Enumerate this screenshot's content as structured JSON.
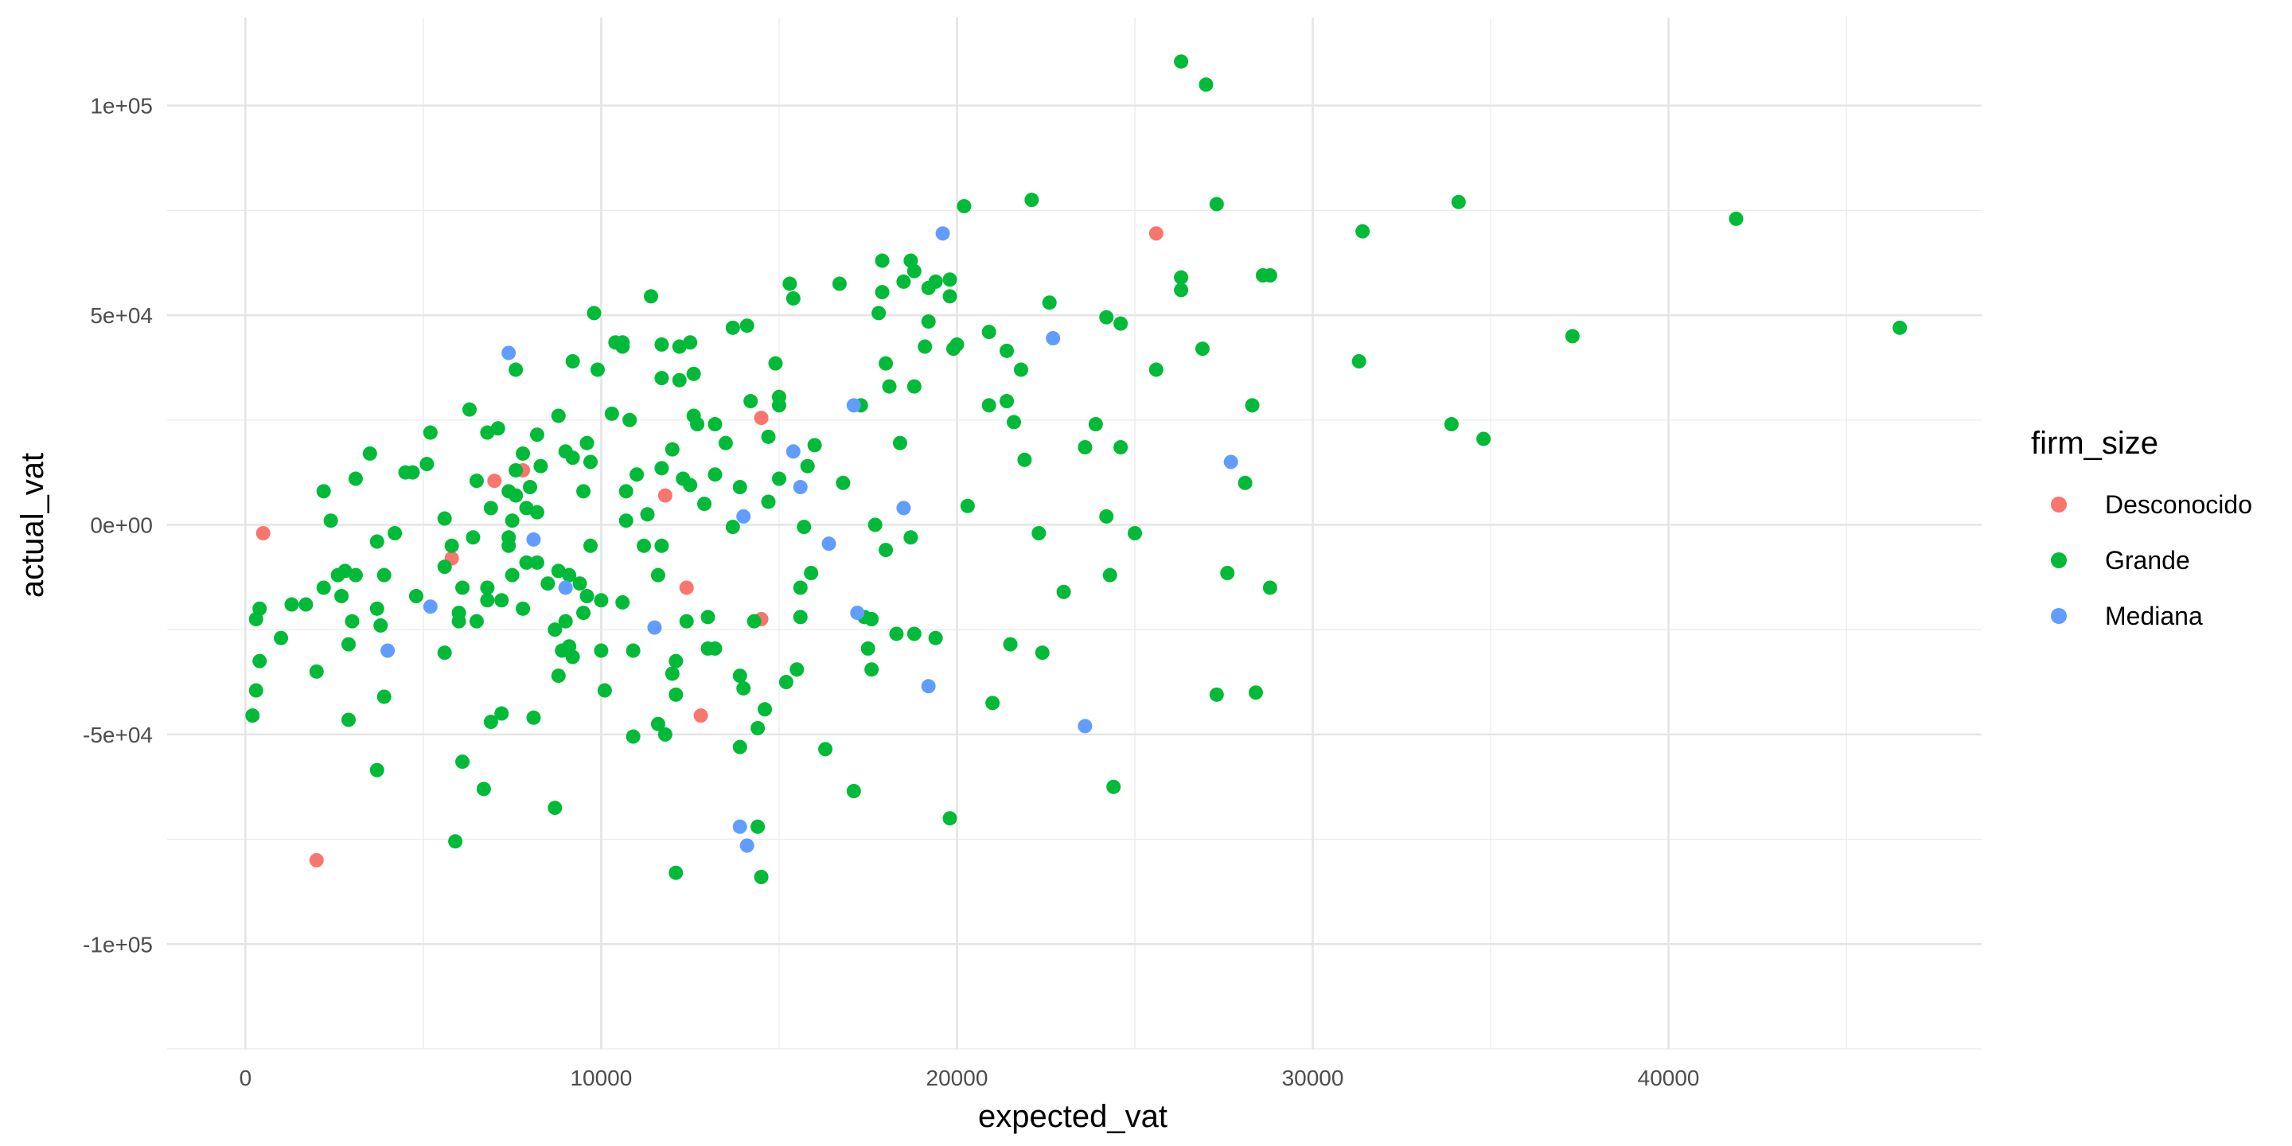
{
  "chart_data": {
    "type": "scatter",
    "xlabel": "expected_vat",
    "ylabel": "actual_vat",
    "xlim": [
      -2200,
      48800
    ],
    "ylim": [
      -125000,
      121000
    ],
    "xticks": [
      0,
      10000,
      20000,
      30000,
      40000
    ],
    "xtick_labels": [
      "0",
      "10000",
      "20000",
      "30000",
      "40000"
    ],
    "yticks": [
      -100000,
      -50000,
      0,
      50000,
      100000
    ],
    "ytick_labels": [
      "-1e+05",
      "-5e+04",
      "0e+00",
      "5e+04",
      "1e+05"
    ],
    "grid": true,
    "legend": {
      "title": "firm_size",
      "placement": "right"
    },
    "series": [
      {
        "name": "Desconocido",
        "color": "#F8766D",
        "points": [
          [
            500,
            -2000
          ],
          [
            2000,
            -80000
          ],
          [
            5800,
            -8000
          ],
          [
            7000,
            10500
          ],
          [
            7800,
            13000
          ],
          [
            11800,
            7000
          ],
          [
            12400,
            -15000
          ],
          [
            12800,
            -45500
          ],
          [
            14500,
            25500
          ],
          [
            14500,
            -22500
          ],
          [
            25600,
            69500
          ]
        ]
      },
      {
        "name": "Grande",
        "color": "#00BA38",
        "points": [
          [
            200,
            -45500
          ],
          [
            300,
            -22500
          ],
          [
            300,
            -39500
          ],
          [
            400,
            -20000
          ],
          [
            400,
            -32500
          ],
          [
            1000,
            -27000
          ],
          [
            1300,
            -19000
          ],
          [
            1700,
            -19000
          ],
          [
            2000,
            -35000
          ],
          [
            2200,
            8000
          ],
          [
            2200,
            -15000
          ],
          [
            2400,
            1000
          ],
          [
            2600,
            -12000
          ],
          [
            2700,
            -17000
          ],
          [
            2800,
            -11000
          ],
          [
            2900,
            -28500
          ],
          [
            2900,
            -46500
          ],
          [
            3000,
            -23000
          ],
          [
            3100,
            11000
          ],
          [
            3100,
            -12000
          ],
          [
            3500,
            17000
          ],
          [
            3700,
            -4000
          ],
          [
            3700,
            -20000
          ],
          [
            3700,
            -58500
          ],
          [
            3800,
            -24000
          ],
          [
            3900,
            -41000
          ],
          [
            3900,
            -12000
          ],
          [
            4200,
            -2000
          ],
          [
            4500,
            12500
          ],
          [
            4700,
            12500
          ],
          [
            4800,
            -17000
          ],
          [
            5100,
            14500
          ],
          [
            5200,
            22000
          ],
          [
            5600,
            -30500
          ],
          [
            5600,
            -10000
          ],
          [
            5600,
            1500
          ],
          [
            5800,
            -5000
          ],
          [
            5900,
            -75500
          ],
          [
            6000,
            -23000
          ],
          [
            6000,
            -21000
          ],
          [
            6100,
            -15000
          ],
          [
            6100,
            -56500
          ],
          [
            6300,
            27500
          ],
          [
            6400,
            -3000
          ],
          [
            6500,
            10500
          ],
          [
            6500,
            -23000
          ],
          [
            6700,
            -63000
          ],
          [
            6800,
            22000
          ],
          [
            6800,
            -15000
          ],
          [
            6800,
            -18000
          ],
          [
            6900,
            4000
          ],
          [
            6900,
            -47000
          ],
          [
            7100,
            23000
          ],
          [
            7200,
            -45000
          ],
          [
            7200,
            -18000
          ],
          [
            7400,
            8000
          ],
          [
            7400,
            -3000
          ],
          [
            7400,
            -5000
          ],
          [
            7500,
            1000
          ],
          [
            7500,
            -12000
          ],
          [
            7600,
            37000
          ],
          [
            7600,
            7000
          ],
          [
            7600,
            13000
          ],
          [
            7800,
            17000
          ],
          [
            7800,
            -20000
          ],
          [
            7900,
            -9000
          ],
          [
            7900,
            4000
          ],
          [
            8000,
            9000
          ],
          [
            8100,
            -46000
          ],
          [
            8200,
            21500
          ],
          [
            8200,
            3000
          ],
          [
            8200,
            -9000
          ],
          [
            8300,
            14000
          ],
          [
            8500,
            -14000
          ],
          [
            8700,
            -25000
          ],
          [
            8700,
            -67500
          ],
          [
            8800,
            26000
          ],
          [
            8800,
            -11000
          ],
          [
            8800,
            -36000
          ],
          [
            8900,
            -30000
          ],
          [
            9000,
            17500
          ],
          [
            9000,
            -23000
          ],
          [
            9100,
            -12000
          ],
          [
            9100,
            -29000
          ],
          [
            9200,
            39000
          ],
          [
            9200,
            16000
          ],
          [
            9200,
            -31500
          ],
          [
            9400,
            -14000
          ],
          [
            9500,
            8000
          ],
          [
            9500,
            -21000
          ],
          [
            9600,
            -17000
          ],
          [
            9600,
            19500
          ],
          [
            9700,
            -5000
          ],
          [
            9700,
            15000
          ],
          [
            9800,
            50500
          ],
          [
            9900,
            37000
          ],
          [
            10000,
            -18000
          ],
          [
            10000,
            -30000
          ],
          [
            10100,
            -39500
          ],
          [
            10300,
            26500
          ],
          [
            10400,
            43500
          ],
          [
            10600,
            43500
          ],
          [
            10600,
            42500
          ],
          [
            10600,
            -18500
          ],
          [
            10700,
            1000
          ],
          [
            10700,
            8000
          ],
          [
            10800,
            25000
          ],
          [
            10900,
            -50500
          ],
          [
            10900,
            -30000
          ],
          [
            11000,
            12000
          ],
          [
            11200,
            -5000
          ],
          [
            11300,
            2500
          ],
          [
            11400,
            54500
          ],
          [
            11600,
            -12000
          ],
          [
            11600,
            -47500
          ],
          [
            11700,
            35000
          ],
          [
            11700,
            43000
          ],
          [
            11700,
            13500
          ],
          [
            11700,
            -5000
          ],
          [
            11800,
            -50000
          ],
          [
            12000,
            18000
          ],
          [
            12000,
            -35500
          ],
          [
            12100,
            -40500
          ],
          [
            12100,
            -83000
          ],
          [
            12100,
            -32500
          ],
          [
            12200,
            42500
          ],
          [
            12200,
            34500
          ],
          [
            12300,
            11000
          ],
          [
            12400,
            -23000
          ],
          [
            12500,
            43500
          ],
          [
            12500,
            9500
          ],
          [
            12600,
            26000
          ],
          [
            12600,
            36000
          ],
          [
            12700,
            24000
          ],
          [
            12900,
            5000
          ],
          [
            13000,
            -29500
          ],
          [
            13000,
            -22000
          ],
          [
            13200,
            -29500
          ],
          [
            13200,
            12000
          ],
          [
            13200,
            24000
          ],
          [
            13500,
            19500
          ],
          [
            13700,
            -500
          ],
          [
            13700,
            47000
          ],
          [
            13900,
            -53000
          ],
          [
            13900,
            9000
          ],
          [
            13900,
            -36000
          ],
          [
            14000,
            -39000
          ],
          [
            14100,
            47500
          ],
          [
            14200,
            29500
          ],
          [
            14300,
            -23000
          ],
          [
            14400,
            -48500
          ],
          [
            14400,
            -72000
          ],
          [
            14500,
            -84000
          ],
          [
            14600,
            -44000
          ],
          [
            14700,
            5500
          ],
          [
            14700,
            21000
          ],
          [
            14900,
            38500
          ],
          [
            15000,
            11000
          ],
          [
            15000,
            30500
          ],
          [
            15000,
            28500
          ],
          [
            15200,
            -37500
          ],
          [
            15300,
            57500
          ],
          [
            15400,
            54000
          ],
          [
            15500,
            -34500
          ],
          [
            15600,
            -15000
          ],
          [
            15600,
            -22000
          ],
          [
            15700,
            -500
          ],
          [
            15800,
            14000
          ],
          [
            15900,
            -11500
          ],
          [
            16000,
            19000
          ],
          [
            16300,
            -53500
          ],
          [
            16700,
            57500
          ],
          [
            16800,
            10000
          ],
          [
            17100,
            -63500
          ],
          [
            17300,
            28500
          ],
          [
            17400,
            -22000
          ],
          [
            17500,
            -29500
          ],
          [
            17600,
            -34500
          ],
          [
            17600,
            -22500
          ],
          [
            17700,
            0
          ],
          [
            17800,
            50500
          ],
          [
            17900,
            63000
          ],
          [
            17900,
            55500
          ],
          [
            18000,
            38500
          ],
          [
            18000,
            -6000
          ],
          [
            18100,
            33000
          ],
          [
            18300,
            -26000
          ],
          [
            18400,
            19500
          ],
          [
            18500,
            58000
          ],
          [
            18700,
            63000
          ],
          [
            18700,
            -3000
          ],
          [
            18800,
            33000
          ],
          [
            18800,
            60500
          ],
          [
            18800,
            -26000
          ],
          [
            19100,
            42500
          ],
          [
            19200,
            48500
          ],
          [
            19200,
            56500
          ],
          [
            19400,
            58000
          ],
          [
            19400,
            -27000
          ],
          [
            19800,
            54500
          ],
          [
            19800,
            -70000
          ],
          [
            19900,
            42000
          ],
          [
            19800,
            58500
          ],
          [
            20000,
            43000
          ],
          [
            20200,
            76000
          ],
          [
            20300,
            4500
          ],
          [
            20900,
            46000
          ],
          [
            20900,
            28500
          ],
          [
            21000,
            -42500
          ],
          [
            21400,
            41500
          ],
          [
            21400,
            29500
          ],
          [
            21500,
            -28500
          ],
          [
            21600,
            24500
          ],
          [
            21800,
            37000
          ],
          [
            21900,
            15500
          ],
          [
            22100,
            77500
          ],
          [
            22300,
            -2000
          ],
          [
            22400,
            -30500
          ],
          [
            22600,
            53000
          ],
          [
            23000,
            -16000
          ],
          [
            23600,
            18500
          ],
          [
            23900,
            24000
          ],
          [
            24200,
            2000
          ],
          [
            24200,
            49500
          ],
          [
            24300,
            -12000
          ],
          [
            24400,
            -62500
          ],
          [
            24600,
            18500
          ],
          [
            24600,
            48000
          ],
          [
            25000,
            -2000
          ],
          [
            25600,
            37000
          ],
          [
            26300,
            110500
          ],
          [
            26300,
            56000
          ],
          [
            26300,
            59000
          ],
          [
            26900,
            42000
          ],
          [
            27000,
            105000
          ],
          [
            27300,
            76500
          ],
          [
            27300,
            -40500
          ],
          [
            27600,
            -11500
          ],
          [
            28100,
            10000
          ],
          [
            28300,
            28500
          ],
          [
            28400,
            -40000
          ],
          [
            28600,
            59500
          ],
          [
            28800,
            59500
          ],
          [
            28800,
            -15000
          ],
          [
            31300,
            39000
          ],
          [
            31400,
            70000
          ],
          [
            33900,
            24000
          ],
          [
            34100,
            77000
          ],
          [
            34800,
            20500
          ],
          [
            37300,
            45000
          ],
          [
            41900,
            73000
          ],
          [
            46500,
            47000
          ]
        ]
      },
      {
        "name": "Mediana",
        "color": "#619CFF",
        "points": [
          [
            4000,
            -30000
          ],
          [
            5200,
            -19500
          ],
          [
            7400,
            41000
          ],
          [
            8100,
            -3500
          ],
          [
            9000,
            -15000
          ],
          [
            11500,
            -24500
          ],
          [
            13900,
            -72000
          ],
          [
            14000,
            2000
          ],
          [
            14100,
            -76500
          ],
          [
            15400,
            17500
          ],
          [
            15600,
            9000
          ],
          [
            16400,
            -4500
          ],
          [
            17100,
            28500
          ],
          [
            17200,
            -21000
          ],
          [
            18500,
            4000
          ],
          [
            19200,
            -38500
          ],
          [
            19600,
            69500
          ],
          [
            22700,
            44500
          ],
          [
            23600,
            -48000
          ],
          [
            27700,
            15000
          ]
        ]
      }
    ]
  }
}
